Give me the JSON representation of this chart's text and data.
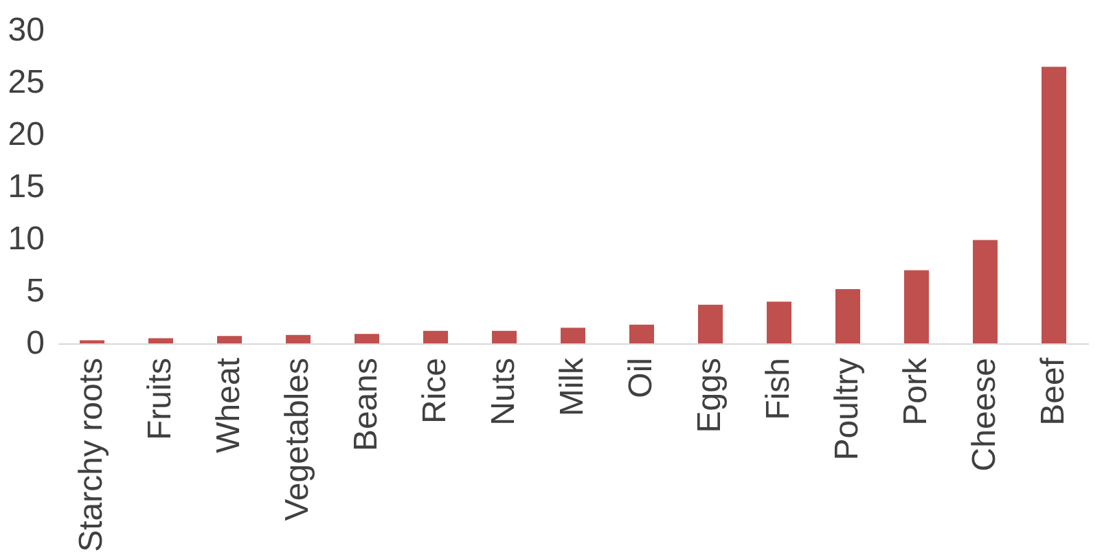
{
  "chart_data": {
    "type": "bar",
    "categories": [
      "Starchy roots",
      "Fruits",
      "Wheat",
      "Vegetables",
      "Beans",
      "Rice",
      "Nuts",
      "Milk",
      "Oil",
      "Eggs",
      "Fish",
      "Poultry",
      "Pork",
      "Cheese",
      "Beef"
    ],
    "values": [
      0.3,
      0.5,
      0.7,
      0.8,
      0.9,
      1.2,
      1.2,
      1.5,
      1.8,
      3.7,
      4.0,
      5.2,
      7.0,
      9.9,
      26.5
    ],
    "color": "#c0504d",
    "ylim": [
      0,
      30
    ],
    "yticks": [
      0,
      5,
      10,
      15,
      20,
      25,
      30
    ],
    "grid": false
  }
}
